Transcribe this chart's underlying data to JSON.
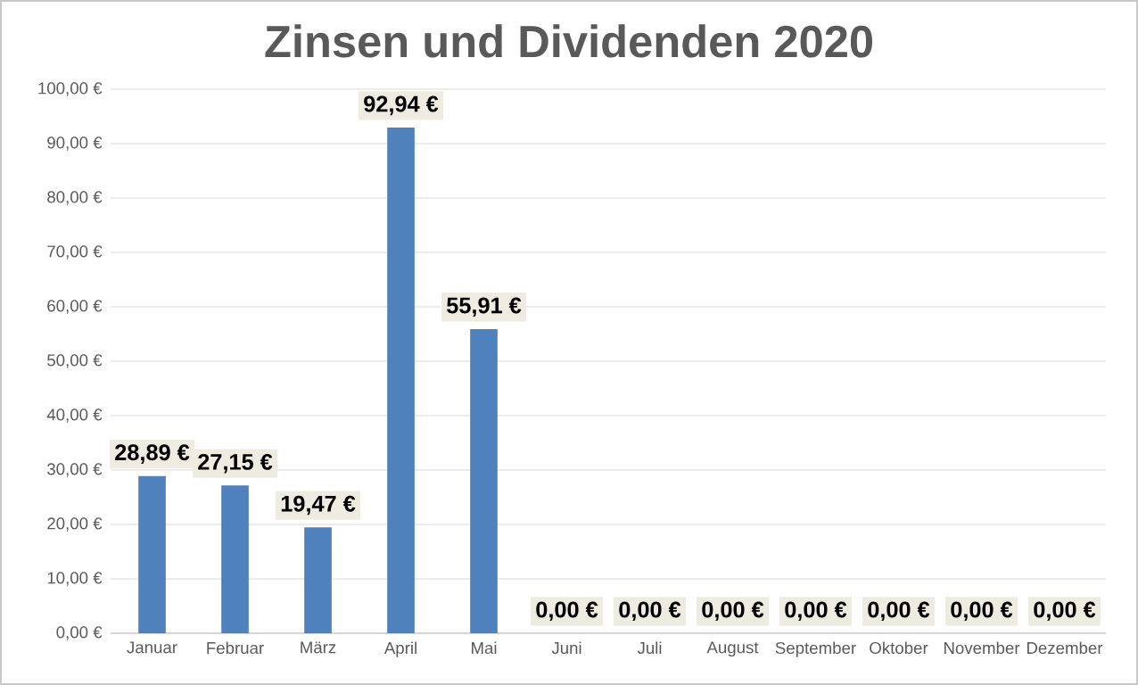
{
  "chart_data": {
    "type": "bar",
    "title": "Zinsen und Dividenden 2020",
    "categories": [
      "Januar",
      "Februar",
      "März",
      "April",
      "Mai",
      "Juni",
      "Juli",
      "August",
      "September",
      "Oktober",
      "November",
      "Dezember"
    ],
    "values": [
      28.89,
      27.15,
      19.47,
      92.94,
      55.91,
      0,
      0,
      0,
      0,
      0,
      0,
      0
    ],
    "value_labels": [
      "28,89 €",
      "27,15 €",
      "19,47 €",
      "92,94 €",
      "55,91 €",
      "0,00 €",
      "0,00 €",
      "0,00 €",
      "0,00 €",
      "0,00 €",
      "0,00 €",
      "0,00 €"
    ],
    "color": "#4f81bd",
    "ylim": [
      0,
      100
    ],
    "yticks": [
      {
        "value": 0,
        "label": "0,00 €"
      },
      {
        "value": 10,
        "label": "10,00 €"
      },
      {
        "value": 20,
        "label": "20,00 €"
      },
      {
        "value": 30,
        "label": "30,00 €"
      },
      {
        "value": 40,
        "label": "40,00 €"
      },
      {
        "value": 50,
        "label": "50,00 €"
      },
      {
        "value": 60,
        "label": "60,00 €"
      },
      {
        "value": 70,
        "label": "70,00 €"
      },
      {
        "value": 80,
        "label": "80,00 €"
      },
      {
        "value": 90,
        "label": "90,00 €"
      },
      {
        "value": 100,
        "label": "100,00 €"
      }
    ],
    "grid": "y"
  }
}
